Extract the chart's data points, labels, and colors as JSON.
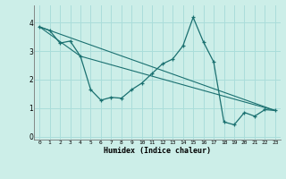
{
  "title": "",
  "xlabel": "Humidex (Indice chaleur)",
  "bg_color": "#cceee8",
  "grid_color": "#aaddda",
  "line_color": "#1a7070",
  "xlim": [
    -0.5,
    23.5
  ],
  "ylim": [
    -0.1,
    4.6
  ],
  "yticks": [
    0,
    1,
    2,
    3,
    4
  ],
  "xticks": [
    0,
    1,
    2,
    3,
    4,
    5,
    6,
    7,
    8,
    9,
    10,
    11,
    12,
    13,
    14,
    15,
    16,
    17,
    18,
    19,
    20,
    21,
    22,
    23
  ],
  "series1_x": [
    0,
    1,
    2,
    3,
    4,
    5,
    6,
    7,
    8,
    9,
    10,
    11,
    12,
    13,
    14,
    15,
    16,
    17,
    18,
    19,
    20,
    21,
    22,
    23
  ],
  "series1_y": [
    3.85,
    3.72,
    3.28,
    3.35,
    2.82,
    1.65,
    1.28,
    1.38,
    1.35,
    1.65,
    1.88,
    2.22,
    2.55,
    2.72,
    3.18,
    4.18,
    3.32,
    2.62,
    0.52,
    0.42,
    0.85,
    0.72,
    0.95,
    0.92
  ],
  "series2_x": [
    0,
    23
  ],
  "series2_y": [
    3.85,
    0.92
  ],
  "series3_x": [
    0,
    4,
    23
  ],
  "series3_y": [
    3.85,
    2.82,
    0.92
  ]
}
